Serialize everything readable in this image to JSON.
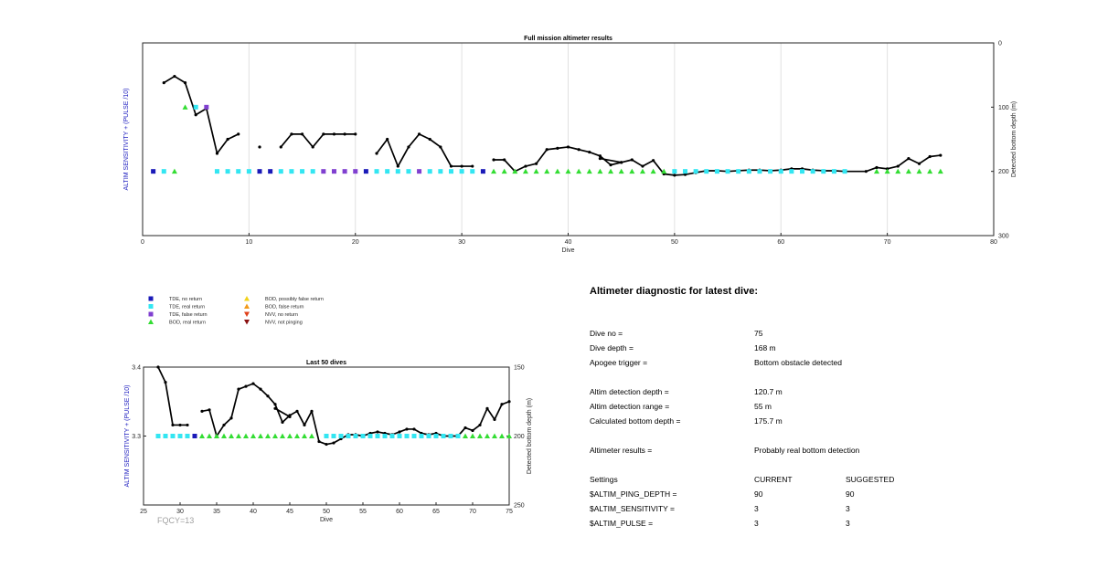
{
  "chart_data": [
    {
      "type": "scatter",
      "title": "Full mission altimeter results",
      "xlabel": "Dive",
      "ylabel_left": "ALTIM SENSITIVITY + (PULSE /10)",
      "ylabel_right": "Detected bottom depth (m)",
      "xlim": [
        0,
        80
      ],
      "xticks": [
        0,
        10,
        20,
        30,
        40,
        50,
        60,
        70,
        80
      ],
      "yright_lim": [
        0,
        300
      ],
      "yright_ticks": [
        0,
        100,
        200,
        300
      ],
      "yright_reversed": true,
      "grid_x": true,
      "depth_segments": [
        [
          [
            2,
            62
          ],
          [
            3,
            52
          ],
          [
            4,
            62
          ],
          [
            5,
            112
          ],
          [
            6,
            102
          ],
          [
            7,
            172
          ],
          [
            8,
            150
          ],
          [
            9,
            142
          ]
        ],
        [
          [
            11,
            162
          ]
        ],
        [
          [
            13,
            162
          ],
          [
            14,
            142
          ],
          [
            15,
            142
          ],
          [
            16,
            162
          ],
          [
            17,
            142
          ],
          [
            18,
            142
          ],
          [
            19,
            142
          ],
          [
            20,
            142
          ]
        ],
        [
          [
            22,
            172
          ],
          [
            23,
            150
          ],
          [
            24,
            192
          ],
          [
            25,
            162
          ],
          [
            26,
            142
          ],
          [
            27,
            150
          ],
          [
            28,
            162
          ],
          [
            29,
            192
          ],
          [
            30,
            192
          ],
          [
            31,
            192
          ]
        ],
        [
          [
            33,
            182
          ],
          [
            34,
            182
          ],
          [
            35,
            200
          ],
          [
            36,
            192
          ],
          [
            37,
            188
          ],
          [
            38,
            166
          ],
          [
            39,
            164
          ],
          [
            40,
            162
          ],
          [
            41,
            166
          ],
          [
            42,
            170
          ],
          [
            43,
            176
          ],
          [
            44,
            190
          ],
          [
            45,
            186
          ],
          [
            46,
            182
          ],
          [
            47,
            192
          ],
          [
            48,
            183
          ],
          [
            49,
            204
          ],
          [
            50,
            206
          ],
          [
            51,
            205
          ],
          [
            52,
            202
          ],
          [
            53,
            199
          ],
          [
            54,
            199
          ],
          [
            55,
            200
          ],
          [
            56,
            199
          ],
          [
            57,
            198
          ],
          [
            58,
            198
          ],
          [
            59,
            199
          ],
          [
            60,
            198
          ],
          [
            61,
            196
          ],
          [
            62,
            196
          ],
          [
            63,
            198
          ],
          [
            64,
            199
          ],
          [
            65,
            199
          ],
          [
            66,
            200
          ],
          [
            68,
            200
          ],
          [
            69,
            194
          ],
          [
            70,
            196
          ],
          [
            71,
            192
          ],
          [
            72,
            180
          ],
          [
            73,
            188
          ],
          [
            74,
            177
          ],
          [
            75,
            175
          ]
        ],
        [
          [
            43,
            180
          ],
          [
            45,
            186
          ]
        ]
      ],
      "markers": {
        "tde_no_return": [
          [
            1,
            200
          ],
          [
            11,
            200
          ],
          [
            12,
            200
          ],
          [
            21,
            200
          ],
          [
            32,
            200
          ]
        ],
        "tde_real_return": [
          [
            2,
            200
          ],
          [
            5,
            100
          ],
          [
            7,
            200
          ],
          [
            8,
            200
          ],
          [
            9,
            200
          ],
          [
            10,
            200
          ],
          [
            13,
            200
          ],
          [
            14,
            200
          ],
          [
            15,
            200
          ],
          [
            16,
            200
          ],
          [
            22,
            200
          ],
          [
            23,
            200
          ],
          [
            24,
            200
          ],
          [
            25,
            200
          ],
          [
            27,
            200
          ],
          [
            28,
            200
          ],
          [
            29,
            200
          ],
          [
            30,
            200
          ],
          [
            31,
            200
          ],
          [
            50,
            200
          ],
          [
            51,
            200
          ],
          [
            52,
            200
          ],
          [
            53,
            200
          ],
          [
            54,
            200
          ],
          [
            55,
            200
          ],
          [
            56,
            200
          ],
          [
            57,
            200
          ],
          [
            58,
            200
          ],
          [
            59,
            200
          ],
          [
            60,
            200
          ],
          [
            61,
            200
          ],
          [
            62,
            200
          ],
          [
            63,
            200
          ],
          [
            64,
            200
          ],
          [
            65,
            200
          ],
          [
            66,
            200
          ]
        ],
        "tde_false_return": [
          [
            6,
            100
          ],
          [
            17,
            200
          ],
          [
            18,
            200
          ],
          [
            19,
            200
          ],
          [
            20,
            200
          ],
          [
            26,
            200
          ]
        ],
        "bod_real_return": [
          [
            3,
            200
          ],
          [
            4,
            100
          ],
          [
            33,
            200
          ],
          [
            34,
            200
          ],
          [
            35,
            200
          ],
          [
            36,
            200
          ],
          [
            37,
            200
          ],
          [
            38,
            200
          ],
          [
            39,
            200
          ],
          [
            40,
            200
          ],
          [
            41,
            200
          ],
          [
            42,
            200
          ],
          [
            43,
            200
          ],
          [
            44,
            200
          ],
          [
            45,
            200
          ],
          [
            46,
            200
          ],
          [
            47,
            200
          ],
          [
            48,
            200
          ],
          [
            49,
            200
          ],
          [
            69,
            200
          ],
          [
            70,
            200
          ],
          [
            71,
            200
          ],
          [
            72,
            200
          ],
          [
            73,
            200
          ],
          [
            74,
            200
          ],
          [
            75,
            200
          ]
        ]
      }
    },
    {
      "type": "scatter",
      "title": "Last 50 dives",
      "xlabel": "Dive",
      "ylabel_left": "ALTIM SENSITIVITY + (PULSE /10)",
      "ylabel_right": "Detected bottom depth (m)",
      "xlim": [
        25,
        75
      ],
      "xticks": [
        25,
        30,
        35,
        40,
        45,
        50,
        55,
        60,
        65,
        70,
        75
      ],
      "yleft_lim": [
        3.2,
        3.4
      ],
      "yleft_ticks": [
        "3.4",
        "3.3",
        ""
      ],
      "yright_lim": [
        150,
        250
      ],
      "yright_ticks": [
        150,
        200,
        250
      ],
      "yright_reversed": true,
      "annotation": "FQCY=13",
      "depth_segments": [
        [
          [
            27,
            150
          ],
          [
            28,
            161
          ],
          [
            29,
            192
          ],
          [
            30,
            192
          ],
          [
            31,
            192
          ]
        ],
        [
          [
            33,
            182
          ],
          [
            34,
            181
          ],
          [
            35,
            200
          ],
          [
            36,
            192
          ],
          [
            37,
            187
          ],
          [
            38,
            166
          ],
          [
            39,
            164
          ],
          [
            40,
            162
          ],
          [
            41,
            166
          ],
          [
            42,
            171
          ],
          [
            43,
            177
          ],
          [
            44,
            190
          ],
          [
            45,
            185
          ],
          [
            46,
            182
          ],
          [
            47,
            192
          ],
          [
            48,
            182
          ],
          [
            49,
            204
          ],
          [
            50,
            206
          ],
          [
            51,
            205
          ],
          [
            52,
            202
          ],
          [
            53,
            199
          ],
          [
            54,
            199
          ],
          [
            55,
            200
          ],
          [
            56,
            198
          ],
          [
            57,
            197
          ],
          [
            58,
            198
          ],
          [
            59,
            199
          ],
          [
            60,
            197
          ],
          [
            61,
            195
          ],
          [
            62,
            195
          ],
          [
            63,
            198
          ],
          [
            64,
            199
          ],
          [
            65,
            198
          ],
          [
            66,
            200
          ],
          [
            68,
            200
          ],
          [
            69,
            194
          ],
          [
            70,
            196
          ],
          [
            71,
            192
          ],
          [
            72,
            180
          ],
          [
            73,
            188
          ],
          [
            74,
            177
          ],
          [
            75,
            175
          ]
        ],
        [
          [
            43,
            180
          ],
          [
            45,
            186
          ]
        ]
      ],
      "markers": {
        "tde_no_return": [
          [
            32,
            3.3
          ]
        ],
        "tde_real_return": [
          [
            27,
            3.3
          ],
          [
            28,
            3.3
          ],
          [
            29,
            3.3
          ],
          [
            30,
            3.3
          ],
          [
            31,
            3.3
          ],
          [
            50,
            3.3
          ],
          [
            51,
            3.3
          ],
          [
            52,
            3.3
          ],
          [
            53,
            3.3
          ],
          [
            54,
            3.3
          ],
          [
            55,
            3.3
          ],
          [
            56,
            3.3
          ],
          [
            57,
            3.3
          ],
          [
            58,
            3.3
          ],
          [
            59,
            3.3
          ],
          [
            60,
            3.3
          ],
          [
            61,
            3.3
          ],
          [
            62,
            3.3
          ],
          [
            63,
            3.3
          ],
          [
            64,
            3.3
          ],
          [
            65,
            3.3
          ],
          [
            66,
            3.3
          ],
          [
            67,
            3.3
          ],
          [
            68,
            3.3
          ]
        ],
        "bod_real_return": [
          [
            33,
            3.3
          ],
          [
            34,
            3.3
          ],
          [
            35,
            3.3
          ],
          [
            36,
            3.3
          ],
          [
            37,
            3.3
          ],
          [
            38,
            3.3
          ],
          [
            39,
            3.3
          ],
          [
            40,
            3.3
          ],
          [
            41,
            3.3
          ],
          [
            42,
            3.3
          ],
          [
            43,
            3.3
          ],
          [
            44,
            3.3
          ],
          [
            45,
            3.3
          ],
          [
            46,
            3.3
          ],
          [
            47,
            3.3
          ],
          [
            48,
            3.3
          ],
          [
            69,
            3.3
          ],
          [
            70,
            3.3
          ],
          [
            71,
            3.3
          ],
          [
            72,
            3.3
          ],
          [
            73,
            3.3
          ],
          [
            74,
            3.3
          ],
          [
            75,
            3.3
          ]
        ]
      }
    }
  ],
  "legend": [
    {
      "key": "tde_no_return",
      "label": "TDE, no return",
      "shape": "square",
      "color": "#1a1ab8"
    },
    {
      "key": "tde_real_return",
      "label": "TDE, real return",
      "shape": "square",
      "color": "#33e6f2"
    },
    {
      "key": "tde_false_return",
      "label": "TDE, false return",
      "shape": "square",
      "color": "#8040d0"
    },
    {
      "key": "bod_real_return",
      "label": "BOD, real return",
      "shape": "triangle-up",
      "color": "#33dd33"
    },
    {
      "key": "bod_possibly_false",
      "label": "BOD, possibly false return",
      "shape": "triangle-up",
      "color": "#f2d21a"
    },
    {
      "key": "bod_false_return",
      "label": "BOD, false return",
      "shape": "triangle-up",
      "color": "#f29a1a"
    },
    {
      "key": "nvv_no_return",
      "label": "NVV, no return",
      "shape": "triangle-down",
      "color": "#e0401a"
    },
    {
      "key": "nvv_not_pinging",
      "label": "NVV, not pinging",
      "shape": "triangle-down",
      "color": "#8a1010"
    }
  ],
  "diagnostic": {
    "heading": "Altimeter diagnostic for latest dive:",
    "dive_no_label": "Dive no =",
    "dive_no": "75",
    "dive_depth_label": "Dive depth =",
    "dive_depth": "168 m",
    "apogee_label": "Apogee trigger =",
    "apogee": "Bottom obstacle detected",
    "det_depth_label": "Altim detection depth =",
    "det_depth": "120.7 m",
    "det_range_label": "Altim detection range =",
    "det_range": "55 m",
    "calc_depth_label": "Calculated bottom depth =",
    "calc_depth": "175.7 m",
    "results_label": "Altimeter results =",
    "results": "Probably real bottom detection",
    "settings_label": "Settings",
    "current_label": "CURRENT",
    "suggested_label": "SUGGESTED",
    "ping_label": "$ALTIM_PING_DEPTH =",
    "ping_cur": "90",
    "ping_sug": "90",
    "sens_label": "$ALTIM_SENSITIVITY =",
    "sens_cur": "3",
    "sens_sug": "3",
    "pulse_label": "$ALTIM_PULSE =",
    "pulse_cur": "3",
    "pulse_sug": "3"
  }
}
